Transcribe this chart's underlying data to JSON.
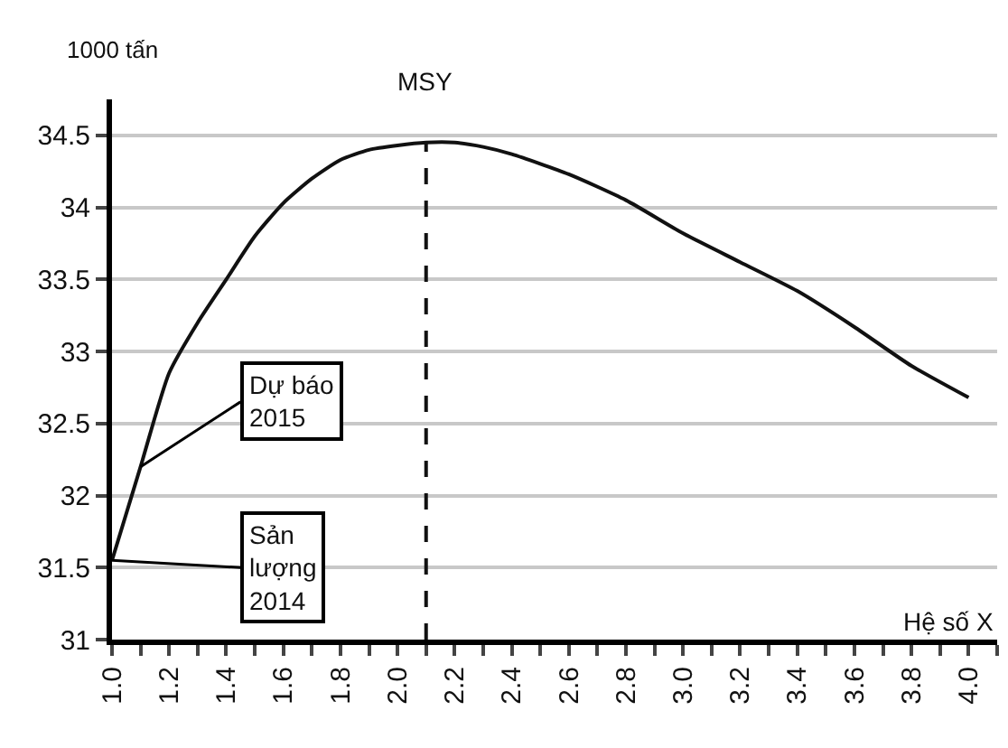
{
  "chart_data": {
    "type": "line",
    "ylabel": "1000 tấn",
    "xlabel": "Hệ số X",
    "x": [
      1.0,
      1.1,
      1.2,
      1.3,
      1.4,
      1.5,
      1.6,
      1.7,
      1.8,
      1.9,
      2.0,
      2.1,
      2.2,
      2.3,
      2.4,
      2.6,
      2.8,
      3.0,
      3.2,
      3.4,
      3.6,
      3.8,
      4.0
    ],
    "series": [
      {
        "color": "#111111",
        "values": [
          31.55,
          32.2,
          32.85,
          33.2,
          33.5,
          33.8,
          34.03,
          34.2,
          34.33,
          34.4,
          34.43,
          34.45,
          34.45,
          34.42,
          34.37,
          34.23,
          34.05,
          33.82,
          33.62,
          33.42,
          33.17,
          32.9,
          32.68
        ]
      }
    ],
    "xlim": [
      1.0,
      4.1
    ],
    "ylim": [
      31,
      34.75
    ],
    "xticks": [
      {
        "value": 1.0,
        "label": "1.0"
      },
      {
        "value": 1.1,
        "label": null
      },
      {
        "value": 1.2,
        "label": "1.2"
      },
      {
        "value": 1.3,
        "label": null
      },
      {
        "value": 1.4,
        "label": "1.4"
      },
      {
        "value": 1.5,
        "label": null
      },
      {
        "value": 1.6,
        "label": "1.6"
      },
      {
        "value": 1.7,
        "label": null
      },
      {
        "value": 1.8,
        "label": "1.8"
      },
      {
        "value": 1.9,
        "label": null
      },
      {
        "value": 2.0,
        "label": "2.0"
      },
      {
        "value": 2.1,
        "label": null
      },
      {
        "value": 2.2,
        "label": "2.2"
      },
      {
        "value": 2.3,
        "label": null
      },
      {
        "value": 2.4,
        "label": "2.4"
      },
      {
        "value": 2.5,
        "label": null
      },
      {
        "value": 2.6,
        "label": "2.6"
      },
      {
        "value": 2.7,
        "label": null
      },
      {
        "value": 2.8,
        "label": "2.8"
      },
      {
        "value": 2.9,
        "label": null
      },
      {
        "value": 3.0,
        "label": "3.0"
      },
      {
        "value": 3.1,
        "label": null
      },
      {
        "value": 3.2,
        "label": "3.2"
      },
      {
        "value": 3.3,
        "label": null
      },
      {
        "value": 3.4,
        "label": "3.4"
      },
      {
        "value": 3.5,
        "label": null
      },
      {
        "value": 3.6,
        "label": "3.6"
      },
      {
        "value": 3.7,
        "label": null
      },
      {
        "value": 3.8,
        "label": "3.8"
      },
      {
        "value": 3.9,
        "label": null
      },
      {
        "value": 4.0,
        "label": "4.0"
      },
      {
        "value": 4.1,
        "label": null
      }
    ],
    "yticks": [
      31,
      31.5,
      32,
      32.5,
      33,
      33.5,
      34,
      34.5
    ],
    "grid": "y",
    "marker": "none",
    "line_style": "solid",
    "ref_lines": [
      {
        "axis": "x",
        "value": 2.1,
        "label": "MSY",
        "line_style": "dashed",
        "color": "#111111"
      }
    ],
    "annotations": [
      {
        "text": "Dự báo\n2015",
        "x": 1.1,
        "y": 32.2
      },
      {
        "text": "Sản\nlượng\n2014",
        "x": 1.0,
        "y": 31.55
      }
    ]
  }
}
